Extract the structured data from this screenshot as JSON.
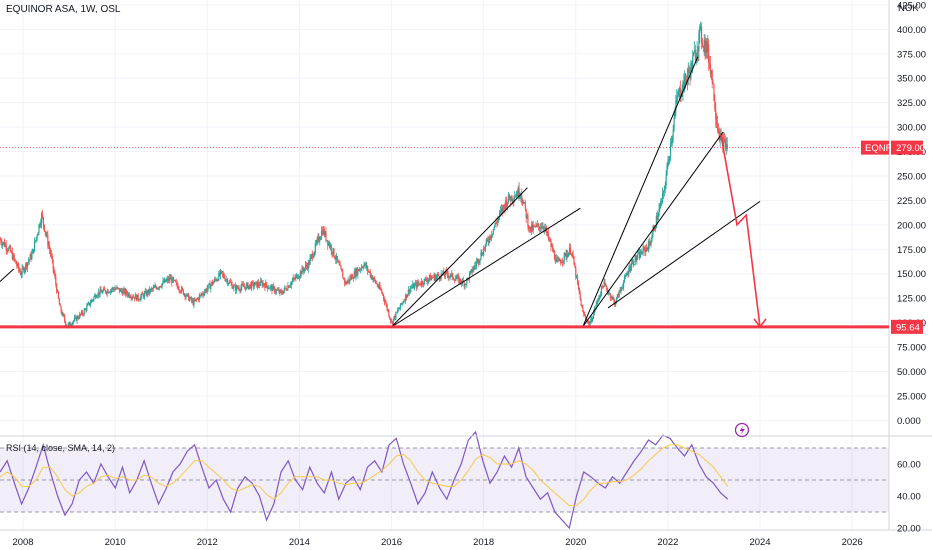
{
  "header": {
    "title": "EQUINOR ASA, 1W, OSL",
    "currency": "NOK"
  },
  "rsi_panel": {
    "label": "RSI (14, close, SMA, 14, 2)"
  },
  "chart_data": [
    {
      "type": "candlestick",
      "title": "EQUINOR ASA, 1W, OSL",
      "ylabel": "NOK",
      "ylim": [
        -15,
        430
      ],
      "xlim": [
        2007.5,
        2026.8
      ],
      "x_ticks": [
        "2008",
        "2010",
        "2012",
        "2014",
        "2016",
        "2018",
        "2020",
        "2022",
        "2024",
        "2026"
      ],
      "y_ticks": [
        "0.000",
        "25.000",
        "50.000",
        "75.000",
        "100.00",
        "125.00",
        "150.00",
        "175.00",
        "200.00",
        "225.00",
        "250.00",
        "275.00",
        "300.00",
        "325.00",
        "350.00",
        "375.00",
        "400.00",
        "425.00"
      ],
      "price_path": [
        [
          2007.5,
          185
        ],
        [
          2007.7,
          175
        ],
        [
          2007.95,
          150
        ],
        [
          2008.2,
          170
        ],
        [
          2008.4,
          210
        ],
        [
          2008.6,
          170
        ],
        [
          2008.8,
          115
        ],
        [
          2008.95,
          96
        ],
        [
          2009.3,
          110
        ],
        [
          2009.6,
          130
        ],
        [
          2010.0,
          135
        ],
        [
          2010.5,
          125
        ],
        [
          2011.2,
          145
        ],
        [
          2011.7,
          120
        ],
        [
          2012.3,
          150
        ],
        [
          2012.6,
          135
        ],
        [
          2013.2,
          140
        ],
        [
          2013.6,
          130
        ],
        [
          2014.2,
          160
        ],
        [
          2014.5,
          195
        ],
        [
          2014.8,
          165
        ],
        [
          2015.0,
          140
        ],
        [
          2015.4,
          160
        ],
        [
          2015.8,
          130
        ],
        [
          2016.0,
          100
        ],
        [
          2016.4,
          135
        ],
        [
          2016.8,
          145
        ],
        [
          2017.2,
          150
        ],
        [
          2017.6,
          140
        ],
        [
          2018.0,
          175
        ],
        [
          2018.5,
          225
        ],
        [
          2018.8,
          235
        ],
        [
          2019.0,
          195
        ],
        [
          2019.3,
          200
        ],
        [
          2019.6,
          160
        ],
        [
          2019.9,
          175
        ],
        [
          2020.15,
          110
        ],
        [
          2020.3,
          98
        ],
        [
          2020.6,
          140
        ],
        [
          2020.85,
          120
        ],
        [
          2021.2,
          160
        ],
        [
          2021.6,
          180
        ],
        [
          2021.9,
          230
        ],
        [
          2022.2,
          330
        ],
        [
          2022.5,
          360
        ],
        [
          2022.7,
          395
        ],
        [
          2022.85,
          380
        ],
        [
          2022.95,
          355
        ],
        [
          2023.05,
          310
        ],
        [
          2023.15,
          285
        ],
        [
          2023.3,
          280
        ]
      ],
      "annotations": {
        "price_tag": {
          "symbol": "EQNR",
          "value": 279.0,
          "color": "#f23645"
        },
        "support_line": {
          "value": 95.64,
          "color": "#f23645"
        },
        "trendlines": [
          {
            "from": [
              2007.5,
              142
            ],
            "to": [
              2007.8,
              155
            ]
          },
          {
            "from": [
              2016.0,
              95.6
            ],
            "to": [
              2018.95,
              238
            ]
          },
          {
            "from": [
              2016.0,
              95.6
            ],
            "to": [
              2020.1,
              217
            ]
          },
          {
            "from": [
              2020.15,
              95.6
            ],
            "to": [
              2022.65,
              372
            ]
          },
          {
            "from": [
              2020.15,
              95.6
            ],
            "to": [
              2023.2,
              295
            ]
          },
          {
            "from": [
              2020.7,
              115
            ],
            "to": [
              2024.0,
              224
            ]
          }
        ],
        "projection": {
          "color": "#f23645",
          "points": [
            [
              2023.15,
              292
            ],
            [
              2023.5,
              200
            ],
            [
              2023.7,
              210
            ],
            [
              2024.0,
              95.64
            ]
          ]
        }
      }
    },
    {
      "type": "line",
      "title": "RSI (14, close, SMA, 14, 2)",
      "ylim": [
        18,
        82
      ],
      "y_ticks": [
        "20.00",
        "40.00",
        "60.00"
      ],
      "band": [
        30,
        70
      ],
      "series": [
        {
          "values": [
            55,
            62,
            48,
            35,
            45,
            58,
            72,
            55,
            40,
            28,
            35,
            50,
            55,
            48,
            60,
            52,
            45,
            58,
            42,
            50,
            62,
            48,
            35,
            44,
            55,
            60,
            68,
            72,
            58,
            45,
            50,
            38,
            30,
            45,
            52,
            48,
            40,
            25,
            35,
            55,
            62,
            50,
            44,
            58,
            48,
            42,
            55,
            38,
            48,
            52,
            44,
            58,
            62,
            55,
            72,
            76,
            60,
            48,
            35,
            42,
            55,
            45,
            38,
            50,
            60,
            75,
            80,
            62,
            48,
            55,
            65,
            58,
            70,
            52,
            45,
            38,
            42,
            30,
            25,
            20,
            40,
            55,
            52,
            48,
            45,
            52,
            48,
            55,
            62,
            68,
            75,
            72,
            78,
            76,
            70,
            65,
            72,
            60,
            52,
            48,
            42,
            38
          ],
          "color": "#7e57c2"
        },
        {
          "values": [
            52,
            55,
            52,
            46,
            46,
            50,
            58,
            58,
            52,
            44,
            40,
            42,
            46,
            48,
            52,
            53,
            51,
            52,
            50,
            50,
            53,
            52,
            48,
            46,
            48,
            52,
            57,
            62,
            62,
            58,
            54,
            50,
            45,
            43,
            45,
            47,
            46,
            41,
            38,
            42,
            48,
            52,
            52,
            52,
            52,
            50,
            50,
            48,
            47,
            48,
            48,
            50,
            53,
            56,
            60,
            65,
            66,
            62,
            55,
            50,
            48,
            47,
            46,
            46,
            50,
            56,
            63,
            66,
            64,
            60,
            60,
            60,
            62,
            60,
            56,
            50,
            46,
            42,
            38,
            34,
            34,
            38,
            44,
            48,
            48,
            49,
            49,
            50,
            53,
            57,
            62,
            66,
            70,
            72,
            72,
            70,
            68,
            66,
            62,
            58,
            52,
            46
          ],
          "color": "#f7c948"
        }
      ]
    }
  ]
}
